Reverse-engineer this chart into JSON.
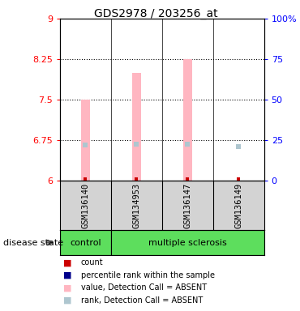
{
  "title": "GDS2978 / 203256_at",
  "samples": [
    "GSM136140",
    "GSM134953",
    "GSM136147",
    "GSM136149"
  ],
  "ylim_left": [
    6,
    9
  ],
  "yticks_left": [
    6,
    6.75,
    7.5,
    8.25,
    9
  ],
  "ytick_labels_left": [
    "6",
    "6.75",
    "7.5",
    "8.25",
    "9"
  ],
  "ytick_labels_right": [
    "0",
    "25",
    "50",
    "75",
    "100%"
  ],
  "bar_values": [
    7.5,
    8.0,
    8.25,
    6.0
  ],
  "bar_color": "#ffb6c1",
  "rank_values": [
    6.65,
    6.67,
    6.67,
    6.62
  ],
  "rank_color": "#aec6cf",
  "count_values": [
    6.02,
    6.02,
    6.02,
    6.02
  ],
  "count_color": "#cc0000",
  "sample_bg_color": "#d3d3d3",
  "plot_bg_color": "#ffffff",
  "dotted_yticks": [
    6.75,
    7.5,
    8.25
  ],
  "x_positions": [
    1,
    2,
    3,
    4
  ],
  "bar_width": 0.18
}
